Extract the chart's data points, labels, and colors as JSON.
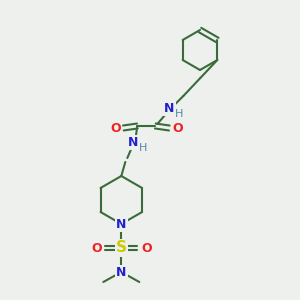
{
  "bg_color": "#eef0ee",
  "bond_color": "#3a6b3a",
  "atom_colors": {
    "N": "#2222cc",
    "O": "#ee2222",
    "S": "#cccc00",
    "H": "#5588aa"
  },
  "figsize": [
    3.0,
    3.0
  ],
  "dpi": 100
}
